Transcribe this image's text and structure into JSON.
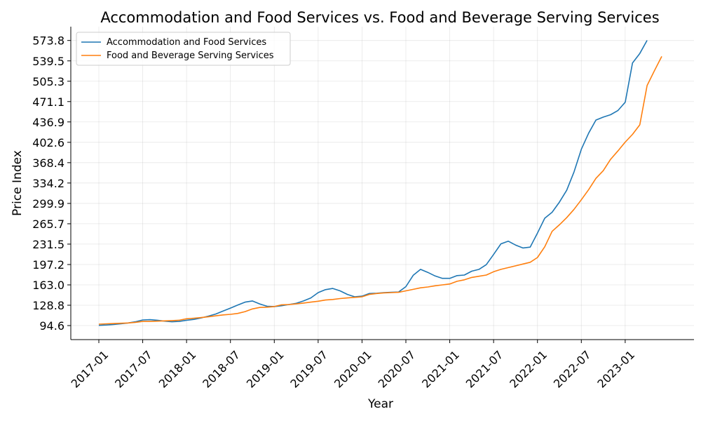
{
  "chart_data": {
    "type": "line",
    "title": "Accommodation and Food Services vs. Food and Beverage Serving Services",
    "xlabel": "Year",
    "ylabel": "Price Index",
    "grid": true,
    "legend_position": "top-left",
    "x_ticks": [
      "2017-01",
      "2017-07",
      "2018-01",
      "2018-07",
      "2019-01",
      "2019-07",
      "2020-01",
      "2020-07",
      "2021-01",
      "2021-07",
      "2022-01",
      "2022-07",
      "2023-01"
    ],
    "y_ticks": [
      "94.6",
      "128.8",
      "163.0",
      "197.2",
      "231.5",
      "265.7",
      "299.9",
      "334.2",
      "368.4",
      "402.6",
      "436.9",
      "471.1",
      "505.3",
      "539.5",
      "573.8"
    ],
    "ylim": [
      71,
      597
    ],
    "x_start": "2017-01",
    "series": [
      {
        "name": "Accommodation and Food Services",
        "color": "#1f77b4",
        "values": [
          95.0,
          95.5,
          96.5,
          97.5,
          99.0,
          101.0,
          104.0,
          104.5,
          103.5,
          102.0,
          101.0,
          101.5,
          103.5,
          105.0,
          107.5,
          110.5,
          114.0,
          119.0,
          124.0,
          129.0,
          134.0,
          136.0,
          131.0,
          127.0,
          126.5,
          128.0,
          130.0,
          132.0,
          136.0,
          141.0,
          150.0,
          155.0,
          157.0,
          153.0,
          147.0,
          143.0,
          144.0,
          148.5,
          149.0,
          150.0,
          150.5,
          151.0,
          160.0,
          179.0,
          189.0,
          184.0,
          178.0,
          174.0,
          174.0,
          178.5,
          179.5,
          186.0,
          189.0,
          197.0,
          214.0,
          232.0,
          236.5,
          230.0,
          225.0,
          226.5,
          250.0,
          275.0,
          285.0,
          302.0,
          322.0,
          353.0,
          391.0,
          418.0,
          440.0,
          445.0,
          449.0,
          456.0,
          470.0,
          536.0,
          552.0,
          574.0
        ]
      },
      {
        "name": "Food and Beverage Serving Services",
        "color": "#ff7f0e",
        "values": [
          97.0,
          97.5,
          98.0,
          98.5,
          99.0,
          100.0,
          101.5,
          101.5,
          102.0,
          102.5,
          103.0,
          103.5,
          106.0,
          107.0,
          108.0,
          109.5,
          111.0,
          112.5,
          113.5,
          115.0,
          118.0,
          122.5,
          125.0,
          125.5,
          126.5,
          129.5,
          130.0,
          131.0,
          132.5,
          134.0,
          135.5,
          137.5,
          138.5,
          140.0,
          141.0,
          142.0,
          143.0,
          147.0,
          148.5,
          149.5,
          150.0,
          150.5,
          153.0,
          155.5,
          158.0,
          159.5,
          161.5,
          163.0,
          164.5,
          169.0,
          171.5,
          175.5,
          177.5,
          179.5,
          185.0,
          189.0,
          192.0,
          195.0,
          198.0,
          201.0,
          209.0,
          227.0,
          253.0,
          264.0,
          276.0,
          290.0,
          306.0,
          323.0,
          342.0,
          355.0,
          374.0,
          388.0,
          403.0,
          416.0,
          432.0,
          498.0,
          523.0,
          547.0
        ]
      }
    ]
  }
}
